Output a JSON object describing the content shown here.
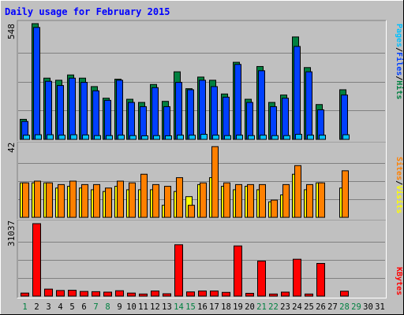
{
  "colors": {
    "background": "#c0c0c0",
    "title": "#0000ff",
    "hits": "#008040",
    "files": "#0040ff",
    "pages": "#00c0ff",
    "visits": "#ffff00",
    "sites": "#ff8000",
    "kbytes": "#ff0000",
    "weekend_label": "#008040",
    "gridline": "#808080"
  },
  "chart_data": [
    {
      "type": "bar",
      "title": "Daily usage for February 2015",
      "categories": [
        "1",
        "2",
        "3",
        "4",
        "5",
        "6",
        "7",
        "8",
        "9",
        "10",
        "11",
        "12",
        "13",
        "14",
        "15",
        "16",
        "17",
        "18",
        "19",
        "20",
        "21",
        "22",
        "23",
        "24",
        "25",
        "26",
        "27",
        "28",
        "29",
        "30",
        "31"
      ],
      "weekend_days": [
        "1",
        "7",
        "8",
        "14",
        "15",
        "21",
        "22",
        "28",
        "29"
      ],
      "ymax_label": "548",
      "ylim": [
        0,
        548
      ],
      "series": [
        {
          "name": "Hits",
          "values": [
            95,
            548,
            290,
            280,
            305,
            290,
            250,
            195,
            285,
            190,
            175,
            260,
            180,
            320,
            240,
            295,
            280,
            215,
            365,
            190,
            345,
            175,
            210,
            485,
            340,
            165,
            0,
            235,
            0,
            0,
            0
          ]
        },
        {
          "name": "Files",
          "values": [
            85,
            530,
            275,
            255,
            290,
            270,
            230,
            185,
            280,
            175,
            155,
            245,
            155,
            270,
            235,
            280,
            250,
            200,
            355,
            175,
            325,
            155,
            195,
            440,
            320,
            140,
            0,
            210,
            0,
            0,
            0
          ]
        },
        {
          "name": "Pages",
          "values": [
            20,
            22,
            22,
            20,
            22,
            21,
            18,
            18,
            20,
            18,
            17,
            18,
            17,
            20,
            20,
            24,
            20,
            18,
            20,
            18,
            20,
            18,
            18,
            24,
            20,
            20,
            0,
            22,
            0,
            0,
            0
          ]
        }
      ]
    },
    {
      "type": "bar",
      "ymax_label": "42",
      "ylim": [
        0,
        42
      ],
      "series": [
        {
          "name": "Visits",
          "values": [
            20,
            20,
            20,
            17,
            18,
            17,
            16,
            15,
            18,
            16,
            16,
            16,
            7,
            15,
            12,
            19,
            23,
            18,
            16,
            18,
            16,
            9,
            13,
            25,
            16,
            20,
            0,
            17,
            0,
            0,
            0
          ]
        },
        {
          "name": "Sites",
          "values": [
            20,
            21,
            20,
            19,
            21,
            19,
            19,
            17,
            21,
            20,
            25,
            19,
            18,
            23,
            7,
            20,
            41,
            20,
            19,
            19,
            19,
            10,
            19,
            30,
            19,
            20,
            0,
            27,
            0,
            0,
            0
          ]
        }
      ]
    },
    {
      "type": "bar",
      "ymax_label": "31037",
      "ylim": [
        0,
        31037
      ],
      "series": [
        {
          "name": "KBytes",
          "values": [
            1300,
            31037,
            3000,
            2400,
            2500,
            2000,
            1900,
            1700,
            2300,
            1300,
            900,
            2200,
            1000,
            22000,
            1800,
            2200,
            2200,
            1600,
            21500,
            1200,
            15000,
            900,
            1700,
            15800,
            900,
            14000,
            0,
            2100,
            0,
            0,
            0
          ]
        }
      ]
    }
  ],
  "right_labels": {
    "top": [
      {
        "text": "Pages",
        "color": "#00c0ff"
      },
      {
        "text": "/",
        "color": "#000000"
      },
      {
        "text": "Files",
        "color": "#0040ff"
      },
      {
        "text": "/",
        "color": "#000000"
      },
      {
        "text": "Hits",
        "color": "#008040"
      }
    ],
    "middle": [
      {
        "text": "Sites",
        "color": "#ff8000"
      },
      {
        "text": "/",
        "color": "#000000"
      },
      {
        "text": "Visits",
        "color": "#ffff00"
      }
    ],
    "bottom": [
      {
        "text": "KBytes",
        "color": "#ff0000"
      }
    ]
  }
}
